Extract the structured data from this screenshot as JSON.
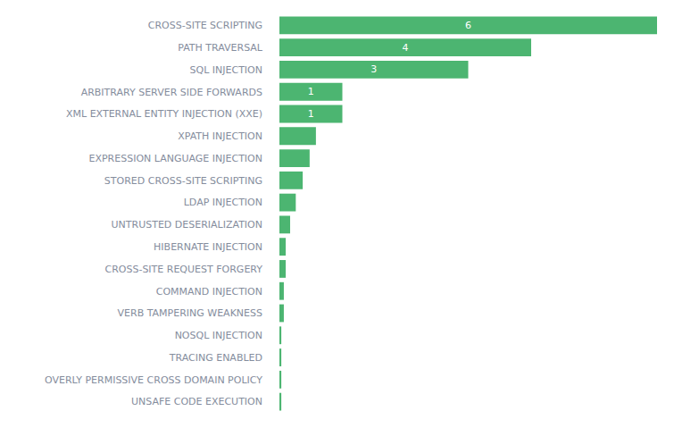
{
  "chart_data": {
    "type": "bar",
    "orientation": "horizontal",
    "categories": [
      "CROSS-SITE SCRIPTING",
      "PATH TRAVERSAL",
      "SQL INJECTION",
      "ARBITRARY SERVER SIDE FORWARDS",
      "XML EXTERNAL ENTITY INJECTION (XXE)",
      "XPATH INJECTION",
      "EXPRESSION LANGUAGE INJECTION",
      "STORED CROSS-SITE SCRIPTING",
      "LDAP INJECTION",
      "UNTRUSTED DESERIALIZATION",
      "HIBERNATE INJECTION",
      "CROSS-SITE REQUEST FORGERY",
      "COMMAND INJECTION",
      "VERB TAMPERING WEAKNESS",
      "NOSQL INJECTION",
      "TRACING ENABLED",
      "OVERLY PERMISSIVE CROSS DOMAIN POLICY",
      "UNSAFE CODE EXECUTION"
    ],
    "values": [
      6,
      4,
      3,
      1,
      1,
      0.58,
      0.48,
      0.37,
      0.26,
      0.17,
      0.1,
      0.1,
      0.07,
      0.07,
      0.03,
      0.03,
      0.03,
      0.03
    ],
    "value_labels": [
      "6",
      "4",
      "3",
      "1",
      "1",
      null,
      null,
      null,
      null,
      null,
      null,
      null,
      null,
      null,
      null,
      null,
      null,
      null
    ],
    "data_labels": true,
    "color": "#4cb571",
    "xlim": [
      0,
      6
    ],
    "tick_labels": "y",
    "grid": false
  }
}
